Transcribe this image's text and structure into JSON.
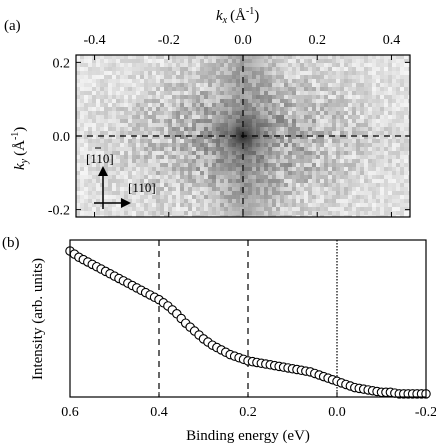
{
  "panel_a": {
    "label": "(a)",
    "xlabel_sym": "k",
    "xlabel_sub": "x",
    "xlabel_unit": "(Å",
    "xlabel_exp": "-1",
    "xlabel_close": ")",
    "ylabel_sym": "k",
    "ylabel_sub": "y",
    "ylabel_unit": "(Å",
    "ylabel_exp": "-1",
    "ylabel_close": ")",
    "dir_up_label": "[110]",
    "dir_right_label": "[110]"
  },
  "panel_b": {
    "label": "(b)",
    "xlabel": "Binding energy (eV)",
    "ylabel": "Intensity (arb. units)"
  },
  "chart_data": [
    {
      "type": "heatmap",
      "xlim": [
        -0.45,
        0.45
      ],
      "ylim": [
        -0.22,
        0.22
      ],
      "x_ticks": [
        -0.4,
        -0.2,
        0.0,
        0.2,
        0.4
      ],
      "x_tick_labels": [
        "-0.4",
        "-0.2",
        "0.0",
        "0.2",
        "0.4"
      ],
      "y_ticks": [
        -0.2,
        0.0,
        0.2
      ],
      "y_tick_labels": [
        "-0.2",
        "0.0",
        "0.2"
      ],
      "dashed_lines": {
        "x": [
          0.0
        ],
        "y": [
          0.0
        ]
      },
      "colormap": "grayscale, dark = high intensity",
      "peak_center": [
        0.0,
        0.0
      ]
    },
    {
      "type": "scatter",
      "x_direction": "reversed",
      "xlim": [
        0.6,
        -0.2
      ],
      "x_ticks": [
        0.6,
        0.4,
        0.2,
        0.0,
        -0.2
      ],
      "x_tick_labels": [
        "0.6",
        "0.4",
        "0.2",
        "0.0",
        "-0.2"
      ],
      "dashed_lines_x": [
        0.4,
        0.2
      ],
      "dotted_lines_x": [
        0.0
      ],
      "marker": "open circle",
      "ylim": [
        0.0,
        1.0
      ],
      "x": [
        0.6,
        0.58,
        0.56,
        0.54,
        0.52,
        0.5,
        0.48,
        0.46,
        0.44,
        0.42,
        0.4,
        0.38,
        0.36,
        0.34,
        0.32,
        0.3,
        0.28,
        0.26,
        0.24,
        0.22,
        0.2,
        0.18,
        0.16,
        0.14,
        0.12,
        0.1,
        0.08,
        0.06,
        0.04,
        0.02,
        0.0,
        -0.02,
        -0.04,
        -0.06,
        -0.08,
        -0.1,
        -0.12,
        -0.14,
        -0.16,
        -0.18,
        -0.2
      ],
      "y": [
        0.93,
        0.89,
        0.86,
        0.83,
        0.8,
        0.77,
        0.74,
        0.71,
        0.68,
        0.65,
        0.62,
        0.58,
        0.53,
        0.47,
        0.42,
        0.37,
        0.33,
        0.3,
        0.27,
        0.25,
        0.23,
        0.22,
        0.21,
        0.2,
        0.19,
        0.18,
        0.17,
        0.16,
        0.14,
        0.12,
        0.1,
        0.08,
        0.06,
        0.05,
        0.04,
        0.03,
        0.03,
        0.02,
        0.02,
        0.02,
        0.02
      ]
    }
  ]
}
